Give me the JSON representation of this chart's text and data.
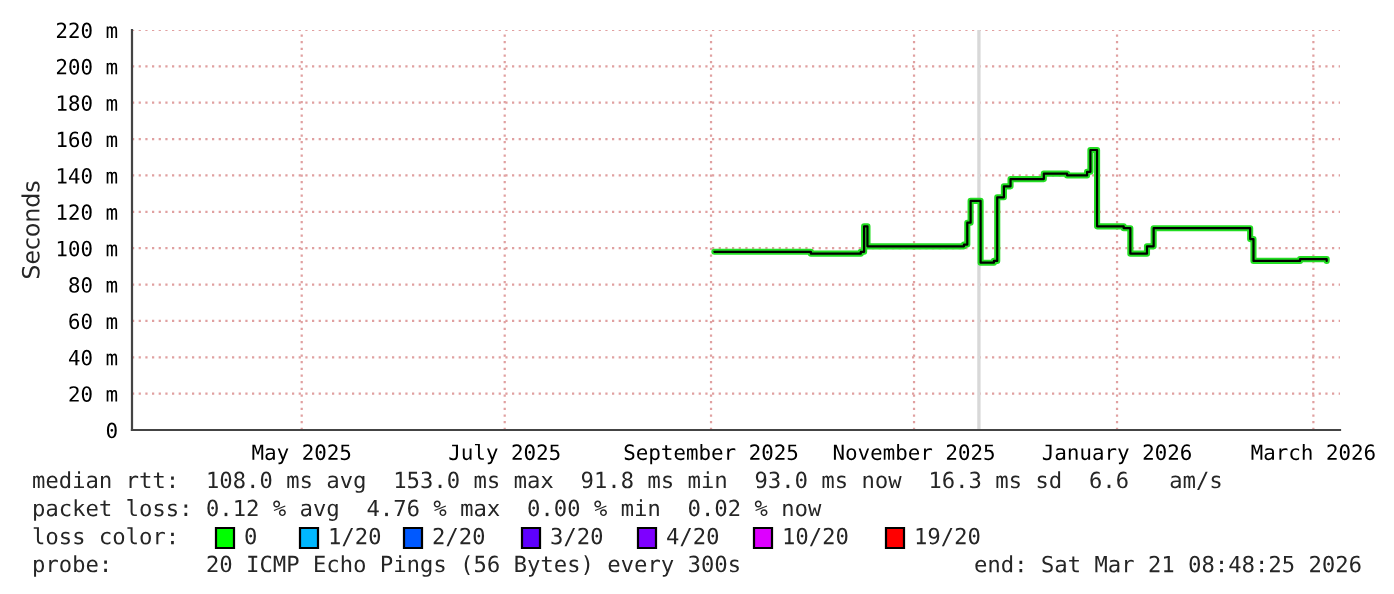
{
  "chart_data": {
    "type": "step",
    "ylabel": "Seconds",
    "x": [
      "2025-09-02",
      "2025-09-20",
      "2025-10-01",
      "2025-10-16",
      "2025-10-17",
      "2025-10-18",
      "2025-11-01",
      "2025-11-16",
      "2025-11-17",
      "2025-11-18",
      "2025-11-20",
      "2025-11-21",
      "2025-11-25",
      "2025-11-26",
      "2025-11-28",
      "2025-11-30",
      "2025-12-10",
      "2025-12-17",
      "2025-12-23",
      "2025-12-24",
      "2025-12-26",
      "2026-01-03",
      "2026-01-05",
      "2026-01-10",
      "2026-01-12",
      "2026-02-09",
      "2026-02-10",
      "2026-02-11",
      "2026-02-25",
      "2026-03-05"
    ],
    "series": [
      {
        "color": "#22dd22",
        "values": [
          98,
          98,
          97,
          98,
          112,
          101,
          101,
          102,
          114,
          126,
          126,
          92,
          93,
          128,
          134,
          138,
          141,
          140,
          142,
          154,
          112,
          111,
          97,
          101,
          111,
          111,
          105,
          93,
          94,
          93
        ]
      }
    ],
    "xlim": [
      "2025-03-11",
      "2026-03-09"
    ],
    "xticks": [
      {
        "value": "2025-05-01",
        "label": "May 2025"
      },
      {
        "value": "2025-07-01",
        "label": "July 2025"
      },
      {
        "value": "2025-09-01",
        "label": "September 2025"
      },
      {
        "value": "2025-11-01",
        "label": "November 2025"
      },
      {
        "value": "2026-01-01",
        "label": "January 2026"
      },
      {
        "value": "2026-03-01",
        "label": "March 2026"
      }
    ],
    "ylim": [
      0,
      220
    ],
    "yticks": [
      0,
      {
        "value": 20,
        "label": "20 m"
      },
      {
        "value": 40,
        "label": "40 m"
      },
      {
        "value": 60,
        "label": "60 m"
      },
      {
        "value": 80,
        "label": "80 m"
      },
      {
        "value": 100,
        "label": "100 m"
      },
      {
        "value": 120,
        "label": "120 m"
      },
      {
        "value": 140,
        "label": "140 m"
      },
      {
        "value": 160,
        "label": "160 m"
      },
      {
        "value": 180,
        "label": "180 m"
      },
      {
        "value": 200,
        "label": "200 m"
      },
      {
        "value": 220,
        "label": "220 m"
      }
    ],
    "bands": [
      {
        "axis": "x",
        "from": "2025-11-20",
        "to": "2025-11-21",
        "color": "#d8d8d8"
      }
    ],
    "grid": true,
    "legend": false,
    "line_style": "solid",
    "annotations": [
      "median rtt:  108.0 ms avg  153.0 ms max  91.8 ms min  93.0 ms now  16.3 ms sd  6.6   am/s",
      "packet loss: 0.12 % avg  4.76 % max  0.00 % min  0.02 % now",
      "loss color:",
      "0",
      "1/20",
      "2/20",
      "3/20",
      "4/20",
      "10/20",
      "19/20",
      "probe:       20 ICMP Echo Pings (56 Bytes) every 300s",
      "end: Sat Mar 21 08:48:25 2026"
    ]
  }
}
